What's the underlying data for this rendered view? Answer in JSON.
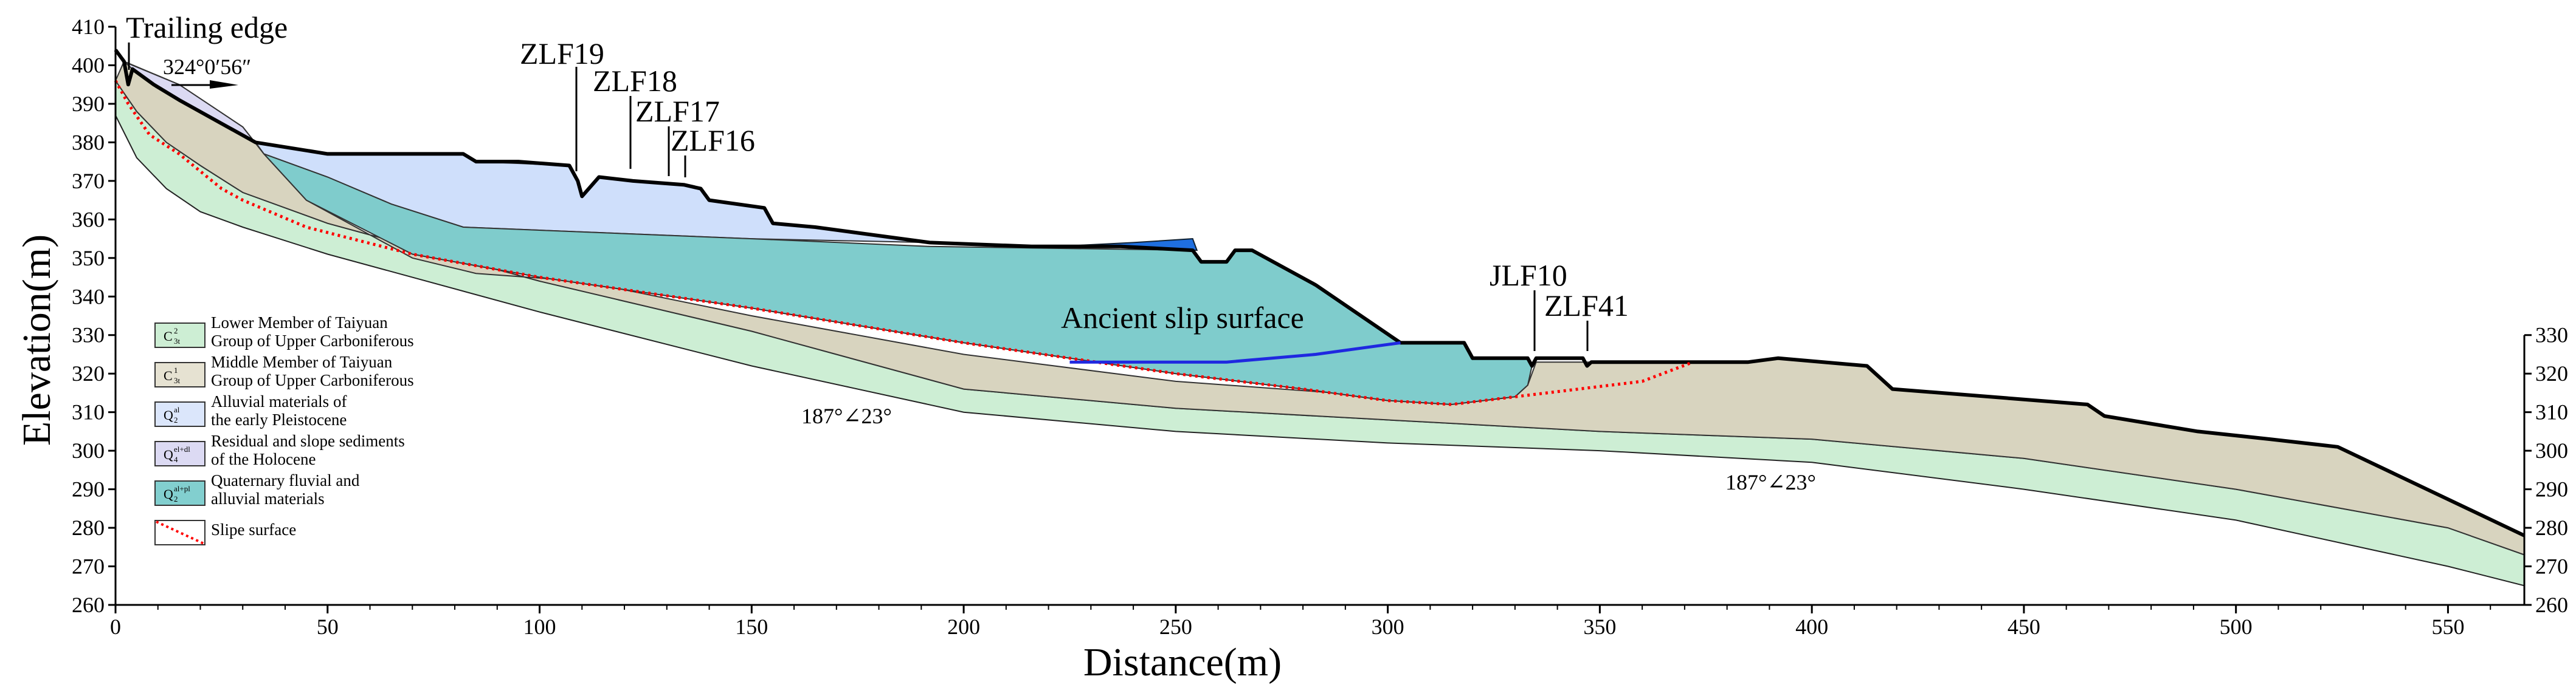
{
  "title": "",
  "axes": {
    "x_title": "Distance(m)",
    "y_title": "Elevation(m)",
    "x_ticks": [
      "0",
      "50",
      "100",
      "150",
      "200",
      "250",
      "300",
      "350",
      "400",
      "450",
      "500",
      "550"
    ],
    "y_ticks_left": [
      "260",
      "270",
      "280",
      "290",
      "300",
      "310",
      "320",
      "330",
      "340",
      "350",
      "360",
      "370",
      "380",
      "390",
      "400",
      "410"
    ],
    "y_ticks_right": [
      "260",
      "270",
      "280",
      "290",
      "300",
      "310",
      "320",
      "330"
    ],
    "x_range": [
      0,
      568
    ],
    "y_range": [
      260,
      410
    ]
  },
  "labels": {
    "trailing_edge": "Trailing edge",
    "azimuth": "324°0′56″",
    "zlf19": "ZLF19",
    "zlf18": "ZLF18",
    "zlf17": "ZLF17",
    "zlf16": "ZLF16",
    "jlf10": "JLF10",
    "zlf41": "ZLF41",
    "ancient_slip": "Ancient slip surface",
    "dip1": "187°∠23°",
    "dip2": "187°∠23°"
  },
  "legend": [
    {
      "symbol": "C",
      "sup": "2",
      "sub": "3t",
      "line1": "Lower Member of Taiyuan",
      "line2": "Group of Upper Carboniferous",
      "color": "#cdeed4"
    },
    {
      "symbol": "C",
      "sup": "1",
      "sub": "3t",
      "line1": "Middle Member of Taiyuan",
      "line2": "Group of Upper Carboniferous",
      "color": "#e6e2d2"
    },
    {
      "symbol": "Q",
      "sup": "al",
      "sub": "2",
      "line1": "Alluvial materials of",
      "line2": "the early Pleistocene",
      "color": "#dbe6fb"
    },
    {
      "symbol": "Q",
      "sup": "el+dl",
      "sub": "4",
      "line1": "Residual and slope sediments",
      "line2": "of the Holocene",
      "color": "#dcdaf3"
    },
    {
      "symbol": "Q",
      "sup": "al+pl",
      "sub": "2",
      "line1": "Quaternary fluvial and",
      "line2": "alluvial materials",
      "color": "#82cfcf"
    },
    {
      "symbol": "",
      "sup": "",
      "sub": "",
      "line1": "Slipe surface",
      "line2": "",
      "color": "#ff0000"
    }
  ],
  "chart_data": {
    "type": "geologic-cross-section",
    "xlabel": "Distance(m)",
    "ylabel": "Elevation(m)",
    "xlim": [
      0,
      568
    ],
    "ylim": [
      260,
      410
    ],
    "colors": {
      "lower_member": "#cdeed4",
      "middle_member": "#d8d4bf",
      "alluvial_pleistocene": "#cfdffb",
      "holocene": "#dcdaf3",
      "fluvial": "#7fcccc",
      "ancient_slip": "#1f28e0",
      "slip_surface": "#ff0000",
      "pond": "#1f6fe0"
    },
    "ground_surface": [
      [
        0,
        404
      ],
      [
        2,
        401
      ],
      [
        3,
        395
      ],
      [
        4,
        399
      ],
      [
        9,
        395
      ],
      [
        15,
        391
      ],
      [
        33,
        380
      ],
      [
        50,
        377
      ],
      [
        65,
        377
      ],
      [
        82,
        377
      ],
      [
        85,
        375
      ],
      [
        95,
        375
      ],
      [
        107,
        374
      ],
      [
        109,
        370
      ],
      [
        110,
        366
      ],
      [
        114,
        371
      ],
      [
        122,
        370
      ],
      [
        134,
        369
      ],
      [
        138,
        368
      ],
      [
        140,
        365
      ],
      [
        153,
        363
      ],
      [
        155,
        359
      ],
      [
        165,
        358
      ],
      [
        192,
        354
      ],
      [
        216,
        353
      ],
      [
        237,
        353
      ],
      [
        254,
        352
      ],
      [
        256,
        349
      ],
      [
        262,
        349
      ],
      [
        264,
        352
      ],
      [
        268,
        352
      ],
      [
        283,
        343
      ],
      [
        303,
        328
      ],
      [
        318,
        328
      ],
      [
        320,
        324
      ],
      [
        333,
        324
      ],
      [
        334,
        322
      ],
      [
        335,
        324
      ],
      [
        340,
        324
      ],
      [
        346,
        324
      ],
      [
        347,
        322
      ],
      [
        348,
        323
      ],
      [
        366,
        323
      ],
      [
        385,
        323
      ],
      [
        392,
        324
      ],
      [
        413,
        322
      ],
      [
        419,
        316
      ],
      [
        465,
        312
      ],
      [
        469,
        309
      ],
      [
        491,
        305
      ],
      [
        508,
        303
      ],
      [
        524,
        301
      ],
      [
        568,
        278
      ]
    ],
    "ground_right_end_y": 278,
    "base_lower_member": [
      [
        0,
        387
      ],
      [
        5,
        376
      ],
      [
        12,
        368
      ],
      [
        20,
        362
      ],
      [
        30,
        358
      ],
      [
        50,
        351
      ],
      [
        100,
        336
      ],
      [
        150,
        322
      ],
      [
        200,
        310
      ],
      [
        250,
        305
      ],
      [
        300,
        302
      ],
      [
        350,
        300
      ],
      [
        400,
        297
      ],
      [
        450,
        290
      ],
      [
        500,
        282
      ],
      [
        550,
        270
      ],
      [
        568,
        265
      ]
    ],
    "top_lower_member": [
      [
        0,
        396
      ],
      [
        5,
        388
      ],
      [
        12,
        380
      ],
      [
        20,
        374
      ],
      [
        30,
        367
      ],
      [
        50,
        359
      ],
      [
        100,
        344
      ],
      [
        150,
        331
      ],
      [
        170,
        325
      ],
      [
        200,
        316
      ],
      [
        250,
        311
      ],
      [
        300,
        308
      ],
      [
        350,
        305
      ],
      [
        400,
        303
      ],
      [
        450,
        298
      ],
      [
        500,
        290
      ],
      [
        550,
        280
      ],
      [
        568,
        273
      ]
    ],
    "top_middle_member": [
      [
        0,
        396
      ],
      [
        2,
        401
      ],
      [
        15,
        395
      ],
      [
        30,
        384
      ],
      [
        35,
        377
      ],
      [
        45,
        365
      ],
      [
        70,
        350
      ],
      [
        85,
        346
      ],
      [
        110,
        344
      ],
      [
        150,
        335
      ],
      [
        200,
        325
      ],
      [
        250,
        318
      ],
      [
        300,
        314
      ],
      [
        330,
        314
      ],
      [
        333,
        317
      ],
      [
        335,
        323
      ],
      [
        366,
        323
      ],
      [
        385,
        323
      ],
      [
        392,
        324
      ],
      [
        413,
        322
      ],
      [
        419,
        316
      ],
      [
        465,
        312
      ],
      [
        469,
        309
      ],
      [
        491,
        305
      ],
      [
        508,
        303
      ],
      [
        524,
        301
      ],
      [
        568,
        278
      ]
    ],
    "slip_surface": [
      [
        0,
        396
      ],
      [
        3,
        390
      ],
      [
        8,
        382
      ],
      [
        15,
        377
      ],
      [
        25,
        368
      ],
      [
        30,
        365
      ],
      [
        45,
        358
      ],
      [
        70,
        351
      ],
      [
        100,
        345
      ],
      [
        150,
        337
      ],
      [
        200,
        328
      ],
      [
        250,
        320
      ],
      [
        280,
        316
      ],
      [
        300,
        313
      ],
      [
        315,
        312
      ],
      [
        330,
        314
      ],
      [
        345,
        316
      ],
      [
        360,
        318
      ],
      [
        372,
        323
      ]
    ],
    "ancient_slip_surface": [
      [
        225,
        323
      ],
      [
        240,
        323
      ],
      [
        262,
        323
      ],
      [
        283,
        325
      ],
      [
        303,
        328
      ]
    ],
    "pond": [
      [
        222,
        353
      ],
      [
        240,
        354
      ],
      [
        254,
        355
      ],
      [
        255,
        352
      ],
      [
        237,
        353
      ]
    ],
    "fluvial_top": [
      [
        35,
        377
      ],
      [
        50,
        371
      ],
      [
        65,
        364
      ],
      [
        82,
        358
      ],
      [
        150,
        355
      ],
      [
        192,
        353
      ],
      [
        254,
        352
      ],
      [
        256,
        349
      ],
      [
        262,
        349
      ],
      [
        264,
        352
      ],
      [
        268,
        352
      ],
      [
        283,
        343
      ],
      [
        303,
        328
      ],
      [
        318,
        328
      ],
      [
        320,
        324
      ],
      [
        333,
        324
      ],
      [
        334,
        322
      ]
    ],
    "alluvial_top": [
      [
        33,
        380
      ],
      [
        50,
        377
      ],
      [
        82,
        377
      ],
      [
        85,
        375
      ],
      [
        107,
        374
      ],
      [
        109,
        370
      ],
      [
        110,
        366
      ],
      [
        114,
        371
      ],
      [
        122,
        370
      ],
      [
        134,
        369
      ],
      [
        138,
        368
      ],
      [
        140,
        365
      ],
      [
        153,
        363
      ],
      [
        155,
        359
      ],
      [
        165,
        358
      ],
      [
        192,
        354
      ]
    ],
    "holocene_top": [
      [
        2,
        401
      ],
      [
        4,
        399
      ],
      [
        9,
        395
      ],
      [
        15,
        391
      ],
      [
        33,
        380
      ],
      [
        35,
        377
      ]
    ],
    "boreholes": [
      {
        "name": "ZLF19",
        "x": 109
      },
      {
        "name": "ZLF18",
        "x": 122
      },
      {
        "name": "ZLF17",
        "x": 131
      },
      {
        "name": "ZLF16",
        "x": 136
      },
      {
        "name": "JLF10",
        "x": 334
      },
      {
        "name": "ZLF41",
        "x": 348
      }
    ]
  }
}
